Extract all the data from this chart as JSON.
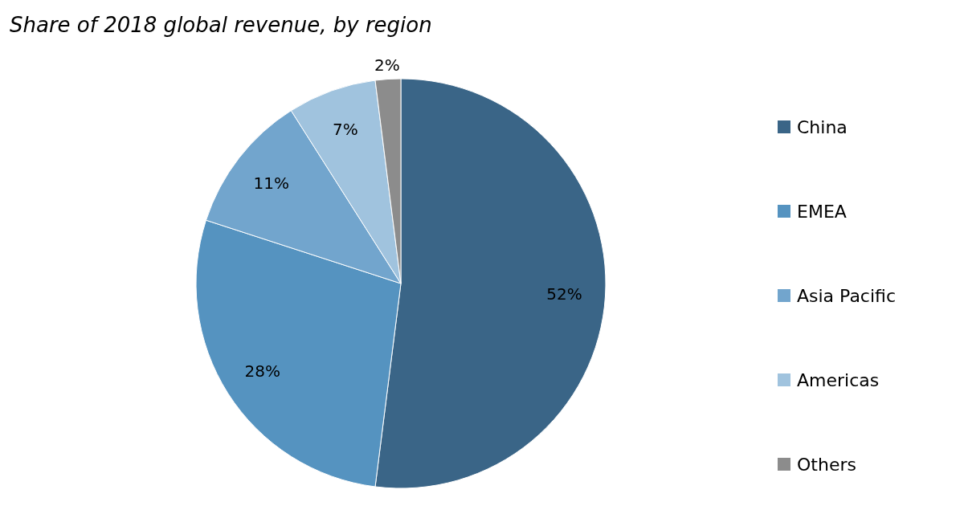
{
  "chart_data": {
    "type": "pie",
    "title": "Share of 2018 global revenue, by region",
    "categories": [
      "China",
      "EMEA",
      "Asia Pacific",
      "Americas",
      "Others"
    ],
    "values": [
      52,
      28,
      11,
      7,
      2
    ],
    "colors": [
      "#3a6587",
      "#5593c0",
      "#72a5cd",
      "#a0c3de",
      "#8c8c8c"
    ],
    "value_labels": [
      "52%",
      "28%",
      "11%",
      "7%",
      "2%"
    ],
    "legend": "right"
  }
}
